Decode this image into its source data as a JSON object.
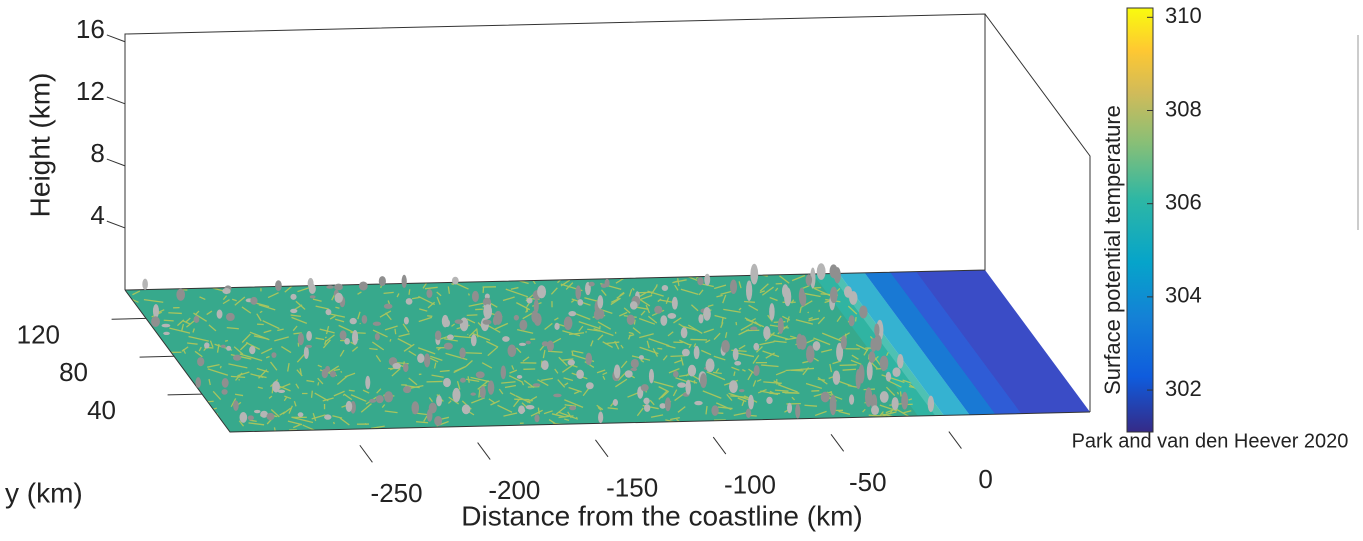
{
  "chart_data": {
    "type": "surface3d",
    "xlabel": "Distance from the coastline (km)",
    "ylabel": "y (km)",
    "zlabel": "Height (km)",
    "xlim": [
      -300,
      65
    ],
    "xticks": [
      -250,
      -200,
      -150,
      -100,
      -50,
      0
    ],
    "ylim": [
      0,
      150
    ],
    "yticks": [
      40,
      80,
      120
    ],
    "zlim": [
      0,
      16.5
    ],
    "zticks": [
      4,
      8,
      12,
      16
    ],
    "colorbar": {
      "label": "Surface potential temperature",
      "lim": [
        301.1,
        310.2
      ],
      "ticks": [
        302,
        304,
        306,
        308,
        310
      ]
    },
    "annotation": "Park and van den Heever 2020"
  }
}
